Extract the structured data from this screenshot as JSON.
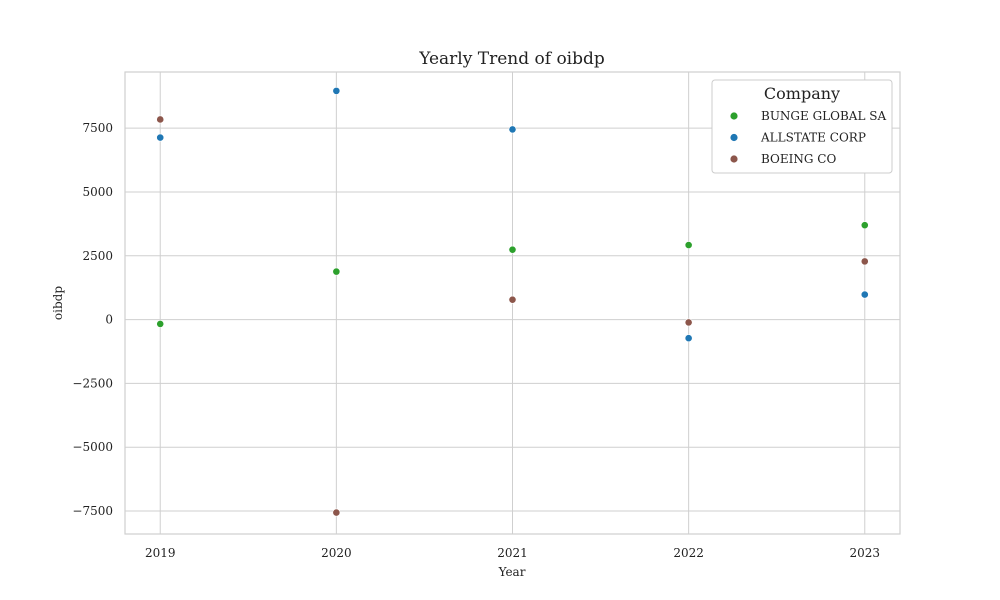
{
  "chart_data": {
    "type": "scatter",
    "title": "Yearly Trend of oibdp",
    "xlabel": "Year",
    "ylabel": "oibdp",
    "x": [
      2019,
      2020,
      2021,
      2022,
      2023
    ],
    "x_tick_labels": [
      "2019",
      "2020",
      "2021",
      "2022",
      "2023"
    ],
    "xlim": [
      2018.8,
      2023.2
    ],
    "ylim": [
      -8400,
      9700
    ],
    "y_ticks": [
      -7500,
      -5000,
      -2500,
      0,
      2500,
      5000,
      7500
    ],
    "y_tick_labels": [
      "−7500",
      "−5000",
      "−2500",
      "0",
      "2500",
      "5000",
      "7500"
    ],
    "grid": true,
    "legend": {
      "title": "Company",
      "placement": "top-right"
    },
    "series": [
      {
        "name": "BUNGE GLOBAL SA",
        "color": "#2ca02c",
        "values": [
          -170,
          1880,
          2740,
          2920,
          3700
        ]
      },
      {
        "name": "ALLSTATE CORP",
        "color": "#1f77b4",
        "values": [
          7130,
          8960,
          7450,
          -730,
          980
        ]
      },
      {
        "name": "BOEING CO",
        "color": "#8c564b",
        "values": [
          7840,
          -7560,
          780,
          -110,
          2280
        ]
      }
    ]
  }
}
